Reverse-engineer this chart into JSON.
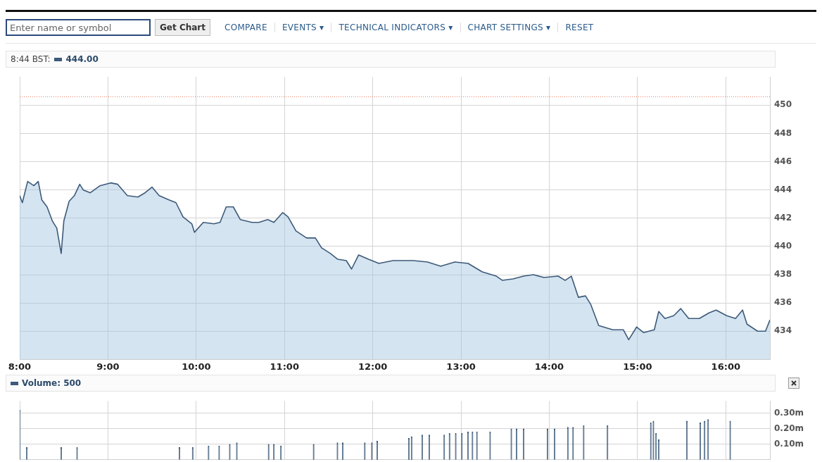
{
  "chart_data": [
    {
      "type": "area",
      "subtitle": "8:44 BST:",
      "legend": "top left",
      "grid": true,
      "marker": "none",
      "annotations": [
        "Enter name or symbol",
        "Get Chart",
        "COMPARE",
        "EVENTS ▾",
        "TECHNICAL INDICATORS ▾",
        "CHART SETTINGS ▾",
        "RESET"
      ],
      "xlim": [
        8,
        16.5
      ],
      "xticks": [
        {
          "value": 8,
          "label": "8:00"
        },
        {
          "value": 9,
          "label": "9:00"
        },
        {
          "value": 10,
          "label": "10:00"
        },
        {
          "value": 11,
          "label": "11:00"
        },
        {
          "value": 12,
          "label": "12:00"
        },
        {
          "value": 13,
          "label": "13:00"
        },
        {
          "value": 14,
          "label": "14:00"
        },
        {
          "value": 15,
          "label": "15:00"
        },
        {
          "value": 16,
          "label": "16:00"
        }
      ],
      "ylim": [
        432,
        452
      ],
      "yticks": [
        434,
        436,
        438,
        440,
        442,
        444,
        446,
        448,
        450
      ],
      "ref_lines": [
        {
          "axis": "y",
          "value": 450.6,
          "color": "#e8735a",
          "line_style": "dotted"
        }
      ],
      "series": [
        {
          "name": "444.00",
          "color": "#3d5a7a",
          "x": [
            8.0,
            8.03,
            8.09,
            8.16,
            8.21,
            8.25,
            8.31,
            8.37,
            8.42,
            8.47,
            8.5,
            8.56,
            8.62,
            8.68,
            8.72,
            8.8,
            8.91,
            9.03,
            9.11,
            9.22,
            9.34,
            9.42,
            9.5,
            9.58,
            9.69,
            9.77,
            9.85,
            9.95,
            9.98,
            10.08,
            10.2,
            10.27,
            10.34,
            10.42,
            10.5,
            10.63,
            10.71,
            10.81,
            10.88,
            10.98,
            11.04,
            11.13,
            11.25,
            11.35,
            11.42,
            11.52,
            11.6,
            11.7,
            11.76,
            11.84,
            11.95,
            12.07,
            12.23,
            12.46,
            12.62,
            12.77,
            12.93,
            13.08,
            13.24,
            13.4,
            13.47,
            13.59,
            13.71,
            13.82,
            13.94,
            14.1,
            14.18,
            14.25,
            14.33,
            14.41,
            14.47,
            14.56,
            14.72,
            14.84,
            14.9,
            14.99,
            15.07,
            15.19,
            15.24,
            15.31,
            15.41,
            15.49,
            15.58,
            15.7,
            15.81,
            15.89,
            16.01,
            16.11,
            16.19,
            16.24,
            16.36,
            16.45,
            16.5
          ],
          "values": [
            443.6,
            443.1,
            444.6,
            444.3,
            444.6,
            443.3,
            442.8,
            441.8,
            441.3,
            439.5,
            441.8,
            443.2,
            443.6,
            444.4,
            444.0,
            443.8,
            444.3,
            444.5,
            444.4,
            443.6,
            443.5,
            443.8,
            444.2,
            443.6,
            443.3,
            443.1,
            442.1,
            441.6,
            441.0,
            441.7,
            441.6,
            441.7,
            442.8,
            442.8,
            441.9,
            441.7,
            441.7,
            441.9,
            441.7,
            442.4,
            442.1,
            441.1,
            440.6,
            440.6,
            439.9,
            439.5,
            439.1,
            439.0,
            438.4,
            439.4,
            439.1,
            438.8,
            439.0,
            439.0,
            438.9,
            438.6,
            438.9,
            438.8,
            438.2,
            437.9,
            437.6,
            437.7,
            437.9,
            438.0,
            437.8,
            437.9,
            437.6,
            437.9,
            436.4,
            436.5,
            435.9,
            434.4,
            434.1,
            434.1,
            433.4,
            434.3,
            433.9,
            434.1,
            435.4,
            434.9,
            435.1,
            435.6,
            434.9,
            434.9,
            435.3,
            435.5,
            435.1,
            434.9,
            435.5,
            434.5,
            434.0,
            434.0,
            434.8
          ]
        }
      ]
    },
    {
      "type": "bar",
      "legend": "top left",
      "grid": true,
      "tick_labels": "y",
      "xlim": [
        8,
        16.5
      ],
      "xticks": [
        8,
        9,
        10,
        11,
        12,
        13,
        14,
        15,
        16
      ],
      "ylim": [
        0,
        0.38
      ],
      "yticks": [
        {
          "value": 0.1,
          "label": "0.10m"
        },
        {
          "value": 0.2,
          "label": "0.20m"
        },
        {
          "value": 0.3,
          "label": "0.30m"
        }
      ],
      "series": [
        {
          "name": "Volume: 500",
          "color": "#3d5a7a",
          "x": [
            8.0,
            8.08,
            8.47,
            8.65,
            9.81,
            9.96,
            10.14,
            10.26,
            10.38,
            10.46,
            10.82,
            10.88,
            10.96,
            11.33,
            11.6,
            11.66,
            11.91,
            11.99,
            12.05,
            12.41,
            12.44,
            12.56,
            12.64,
            12.81,
            12.87,
            12.94,
            13.01,
            13.08,
            13.13,
            13.18,
            13.33,
            13.57,
            13.63,
            13.71,
            13.98,
            14.06,
            14.21,
            14.27,
            14.39,
            14.66,
            15.15,
            15.18,
            15.21,
            15.24,
            15.56,
            15.71,
            15.76,
            15.8,
            16.05
          ],
          "values": [
            0.32,
            0.08,
            0.08,
            0.08,
            0.08,
            0.08,
            0.09,
            0.09,
            0.1,
            0.11,
            0.1,
            0.1,
            0.09,
            0.1,
            0.11,
            0.11,
            0.11,
            0.11,
            0.12,
            0.14,
            0.15,
            0.16,
            0.16,
            0.16,
            0.17,
            0.17,
            0.17,
            0.18,
            0.18,
            0.18,
            0.18,
            0.2,
            0.2,
            0.2,
            0.2,
            0.2,
            0.21,
            0.21,
            0.22,
            0.22,
            0.24,
            0.25,
            0.17,
            0.13,
            0.25,
            0.24,
            0.25,
            0.26,
            0.25
          ]
        }
      ]
    }
  ]
}
